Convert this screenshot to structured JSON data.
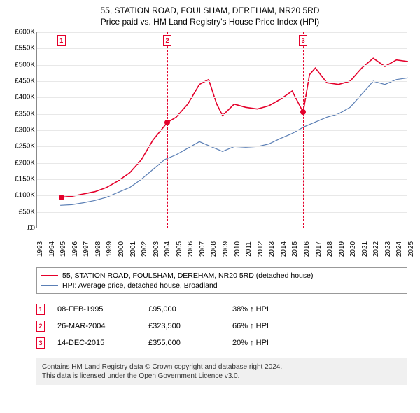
{
  "title_line1": "55, STATION ROAD, FOULSHAM, DEREHAM, NR20 5RD",
  "title_line2": "Price paid vs. HM Land Registry's House Price Index (HPI)",
  "chart": {
    "type": "line",
    "background_color": "#ffffff",
    "grid_color": "#e8e8e8",
    "axis_color": "#888888",
    "ylim": [
      0,
      600000
    ],
    "ytick_step": 50000,
    "yticks": [
      "£0",
      "£50K",
      "£100K",
      "£150K",
      "£200K",
      "£250K",
      "£300K",
      "£350K",
      "£400K",
      "£450K",
      "£500K",
      "£550K",
      "£600K"
    ],
    "xlim": [
      1993,
      2025
    ],
    "xticks": [
      1993,
      1994,
      1995,
      1996,
      1997,
      1998,
      1999,
      2000,
      2001,
      2002,
      2003,
      2004,
      2005,
      2006,
      2007,
      2008,
      2009,
      2010,
      2011,
      2012,
      2013,
      2014,
      2015,
      2016,
      2017,
      2018,
      2019,
      2020,
      2021,
      2022,
      2023,
      2024,
      2025
    ],
    "label_fontsize": 10,
    "series": [
      {
        "name": "55, STATION ROAD, FOULSHAM, DEREHAM, NR20 5RD (detached house)",
        "color": "#e4002b",
        "line_width": 1.6,
        "data": [
          [
            1995.1,
            95000
          ],
          [
            1996,
            98000
          ],
          [
            1997,
            105000
          ],
          [
            1998,
            112000
          ],
          [
            1999,
            125000
          ],
          [
            2000,
            145000
          ],
          [
            2001,
            170000
          ],
          [
            2002,
            210000
          ],
          [
            2003,
            270000
          ],
          [
            2004.23,
            323500
          ],
          [
            2005,
            340000
          ],
          [
            2006,
            380000
          ],
          [
            2007,
            440000
          ],
          [
            2007.8,
            455000
          ],
          [
            2008.5,
            380000
          ],
          [
            2009,
            345000
          ],
          [
            2010,
            380000
          ],
          [
            2011,
            370000
          ],
          [
            2012,
            365000
          ],
          [
            2013,
            375000
          ],
          [
            2014,
            395000
          ],
          [
            2015,
            420000
          ],
          [
            2015.95,
            355000
          ],
          [
            2016.5,
            470000
          ],
          [
            2017,
            490000
          ],
          [
            2018,
            445000
          ],
          [
            2019,
            440000
          ],
          [
            2020,
            450000
          ],
          [
            2021,
            490000
          ],
          [
            2022,
            520000
          ],
          [
            2023,
            495000
          ],
          [
            2024,
            515000
          ],
          [
            2025,
            510000
          ]
        ]
      },
      {
        "name": "HPI: Average price, detached house, Broadland",
        "color": "#5b7fb5",
        "line_width": 1.2,
        "data": [
          [
            1995,
            70000
          ],
          [
            1996,
            72000
          ],
          [
            1997,
            78000
          ],
          [
            1998,
            85000
          ],
          [
            1999,
            95000
          ],
          [
            2000,
            110000
          ],
          [
            2001,
            125000
          ],
          [
            2002,
            150000
          ],
          [
            2003,
            180000
          ],
          [
            2004,
            210000
          ],
          [
            2005,
            225000
          ],
          [
            2006,
            245000
          ],
          [
            2007,
            265000
          ],
          [
            2008,
            250000
          ],
          [
            2009,
            235000
          ],
          [
            2010,
            250000
          ],
          [
            2011,
            248000
          ],
          [
            2012,
            250000
          ],
          [
            2013,
            258000
          ],
          [
            2014,
            275000
          ],
          [
            2015,
            290000
          ],
          [
            2016,
            310000
          ],
          [
            2017,
            325000
          ],
          [
            2018,
            340000
          ],
          [
            2019,
            350000
          ],
          [
            2020,
            370000
          ],
          [
            2021,
            410000
          ],
          [
            2022,
            450000
          ],
          [
            2023,
            440000
          ],
          [
            2024,
            455000
          ],
          [
            2025,
            460000
          ]
        ]
      }
    ],
    "markers": [
      {
        "n": "1",
        "x": 1995.1,
        "y": 95000,
        "color": "#e4002b"
      },
      {
        "n": "2",
        "x": 2004.23,
        "y": 323500,
        "color": "#e4002b"
      },
      {
        "n": "3",
        "x": 2015.95,
        "y": 355000,
        "color": "#e4002b"
      }
    ]
  },
  "legend": {
    "items": [
      {
        "color": "#e4002b",
        "label": "55, STATION ROAD, FOULSHAM, DEREHAM, NR20 5RD (detached house)"
      },
      {
        "color": "#5b7fb5",
        "label": "HPI: Average price, detached house, Broadland"
      }
    ]
  },
  "transactions": [
    {
      "n": "1",
      "color": "#e4002b",
      "date": "08-FEB-1995",
      "price": "£95,000",
      "pct": "38% ↑ HPI"
    },
    {
      "n": "2",
      "color": "#e4002b",
      "date": "26-MAR-2004",
      "price": "£323,500",
      "pct": "66% ↑ HPI"
    },
    {
      "n": "3",
      "color": "#e4002b",
      "date": "14-DEC-2015",
      "price": "£355,000",
      "pct": "20% ↑ HPI"
    }
  ],
  "footer_line1": "Contains HM Land Registry data © Crown copyright and database right 2024.",
  "footer_line2": "This data is licensed under the Open Government Licence v3.0."
}
